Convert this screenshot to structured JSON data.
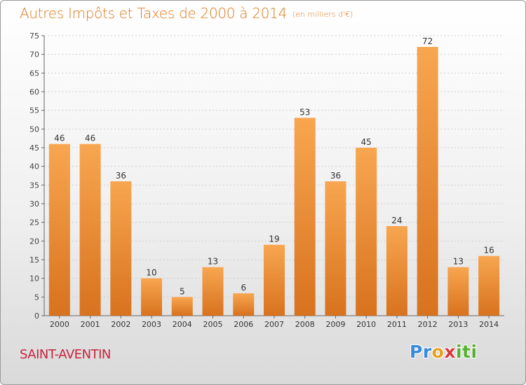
{
  "header": {
    "title": "Autres Impôts et Taxes de 2000 à 2014",
    "unit": "(en milliers d'€)"
  },
  "footer": {
    "commune": "SAINT-AVENTIN",
    "logo_text": "Proxiti"
  },
  "colors": {
    "bar_light": "#f8a650",
    "bar_dark": "#d8721e",
    "title": "#e07818",
    "commune": "#c8243c"
  },
  "chart_data": {
    "type": "bar",
    "title": "Autres Impôts et Taxes de 2000 à 2014",
    "subtitle": "(en milliers d'€)",
    "categories": [
      "2000",
      "2001",
      "2002",
      "2003",
      "2004",
      "2005",
      "2006",
      "2007",
      "2008",
      "2009",
      "2010",
      "2011",
      "2012",
      "2013",
      "2014"
    ],
    "values": [
      46,
      46,
      36,
      10,
      5,
      13,
      6,
      19,
      53,
      36,
      45,
      24,
      72,
      13,
      16
    ],
    "ylim": [
      0,
      75
    ],
    "yticks": [
      0,
      5,
      10,
      15,
      20,
      25,
      30,
      35,
      40,
      45,
      50,
      55,
      60,
      65,
      70,
      75
    ],
    "grid": true,
    "xlabel": "",
    "ylabel": ""
  }
}
